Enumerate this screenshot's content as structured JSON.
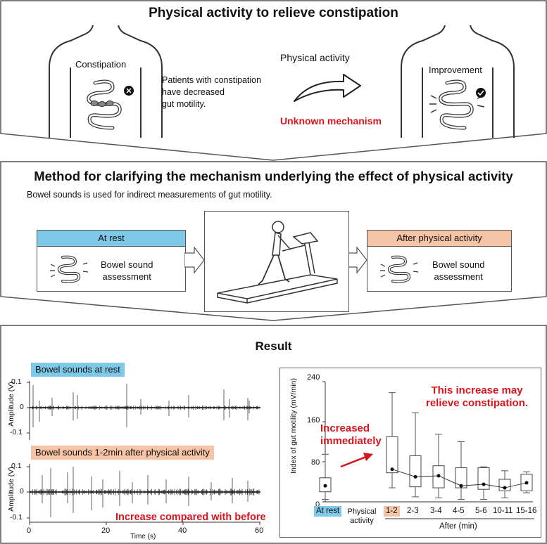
{
  "top": {
    "title": "Physical activity to relieve constipation",
    "constipation_label": "Constipation",
    "patients_text": [
      "Patients with constipation",
      "have decreased",
      "gut motility."
    ],
    "physical_activity_label": "Physical activity",
    "unknown_mechanism": "Unknown mechanism",
    "improvement_label": "Improvement"
  },
  "method": {
    "title": "Method for clarifying the mechanism underlying the effect of physical activity",
    "subtitle": "Bowel sounds is used for indirect measurements of gut motility.",
    "at_rest_header": "At rest",
    "at_rest_body": [
      "Bowel sound",
      "assessment"
    ],
    "after_header": "After physical activity",
    "after_body": [
      "Bowel sound",
      "assessment"
    ]
  },
  "result": {
    "title": "Result",
    "tag_rest": "Bowel sounds at rest",
    "tag_after": "Bowel sounds 1-2min after physical activity",
    "amp_label": "Amplitude (V)",
    "time_label": "Time (s)",
    "y_ticks_top": [
      "0.1",
      "0",
      "-0.1"
    ],
    "y_ticks_bottom": [
      "0.1",
      "0",
      "-0.1"
    ],
    "x_ticks": [
      "0",
      "20",
      "40",
      "60"
    ],
    "increase_text": "Increase compared with before",
    "increased_immediately": [
      "Increased",
      "immediately"
    ],
    "this_increase": [
      "This increase may",
      "relieve constipation."
    ]
  },
  "colors": {
    "blue_tag": "#7ec8e8",
    "orange_tag": "#f5c4a6",
    "red": "#d8141c",
    "border": "#555555"
  },
  "chart_data": {
    "type": "box",
    "ylabel": "Index of gut motility  (mV/min)",
    "ylim": [
      0,
      240
    ],
    "yticks": [
      "0",
      "80",
      "160",
      "240"
    ],
    "categories": [
      "At rest",
      "Physical activity",
      "1-2",
      "2-3",
      "3-4",
      "4-5",
      "5-6",
      "10-11",
      "15-16"
    ],
    "xgroup_label": "After (min)",
    "boxes": [
      {
        "category": "At rest",
        "whisker_low": 5,
        "q1": 20,
        "median": 32,
        "q3": 48,
        "whisker_high": 95
      },
      {
        "category": "1-2",
        "whisker_low": 28,
        "q1": 58,
        "median": 65,
        "q3": 130,
        "whisker_high": 218
      },
      {
        "category": "2-3",
        "whisker_low": 10,
        "q1": 30,
        "median": 50,
        "q3": 92,
        "whisker_high": 178
      },
      {
        "category": "3-4",
        "whisker_low": 8,
        "q1": 28,
        "median": 52,
        "q3": 72,
        "whisker_high": 135
      },
      {
        "category": "4-5",
        "whisker_low": 5,
        "q1": 28,
        "median": 32,
        "q3": 68,
        "whisker_high": 120
      },
      {
        "category": "5-6",
        "whisker_low": 5,
        "q1": 25,
        "median": 35,
        "q3": 68,
        "whisker_high": 70
      },
      {
        "category": "10-11",
        "whisker_low": 8,
        "q1": 22,
        "median": 28,
        "q3": 45,
        "whisker_high": 62
      },
      {
        "category": "15-16",
        "whisker_low": 18,
        "q1": 22,
        "median": 38,
        "q3": 55,
        "whisker_high": 60
      }
    ]
  }
}
